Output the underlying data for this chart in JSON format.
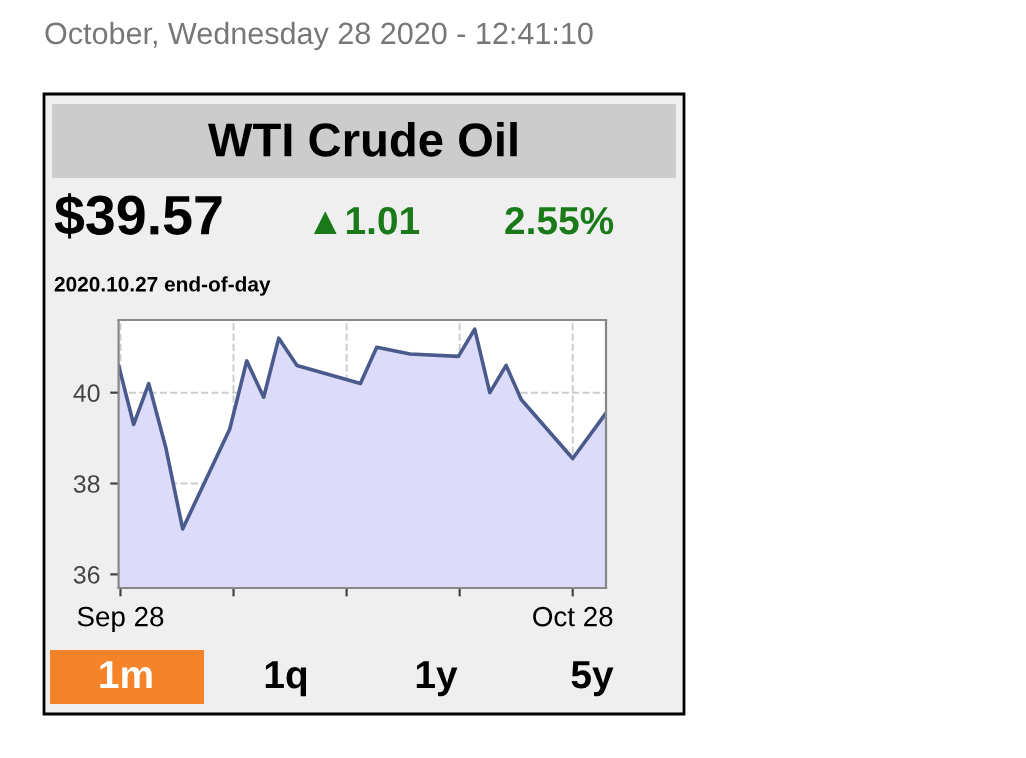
{
  "chart_data": {
    "type": "area",
    "title": "WTI Crude Oil",
    "annotations": [
      "October, Wednesday 28 2020 - 12:41:10",
      "$39.57",
      "▲1.01",
      "2.55%",
      "2020.10.27 end-of-day",
      "1m",
      "1q",
      "1y",
      "5y"
    ],
    "x": [
      "2020-09-27T21:00",
      "2020-09-28T21:00",
      "2020-09-29T21:00",
      "2020-10-01",
      "2020-10-02T03:00",
      "2020-10-05T06:00",
      "2020-10-06T09:00",
      "2020-10-07T12:00",
      "2020-10-08T12:00",
      "2020-10-09T17:00",
      "2020-10-13T22:00",
      "2020-10-15",
      "2020-10-17T05:00",
      "2020-10-20T10:00",
      "2020-10-21T12:00",
      "2020-10-22T12:00",
      "2020-10-23T14:00",
      "2020-10-24T14:00",
      "2020-10-28",
      "2020-10-30T05:00"
    ],
    "series": [
      {
        "color": "#4a5a8c",
        "values": [
          40.6,
          39.3,
          40.2,
          38.8,
          37.0,
          39.2,
          40.7,
          39.9,
          41.2,
          40.6,
          40.2,
          41.0,
          40.85,
          40.8,
          41.4,
          40.0,
          40.6,
          39.85,
          38.55,
          39.55
        ]
      }
    ],
    "xlim": [
      "2020-09-27T21:00",
      "2020-10-30T05:00"
    ],
    "xticks": [
      {
        "value": "2020-09-28",
        "label": "Sep 28"
      },
      {
        "value": "2020-10-05T12:00",
        "label": null
      },
      {
        "value": "2020-10-13",
        "label": null
      },
      {
        "value": "2020-10-20T12:00",
        "label": null
      },
      {
        "value": "2020-10-28",
        "label": "Oct 28"
      }
    ],
    "ylim": [
      35.7,
      41.6
    ],
    "yticks": [
      36,
      38,
      40
    ],
    "grid": true,
    "line_style": "solid",
    "marker": "none"
  }
}
